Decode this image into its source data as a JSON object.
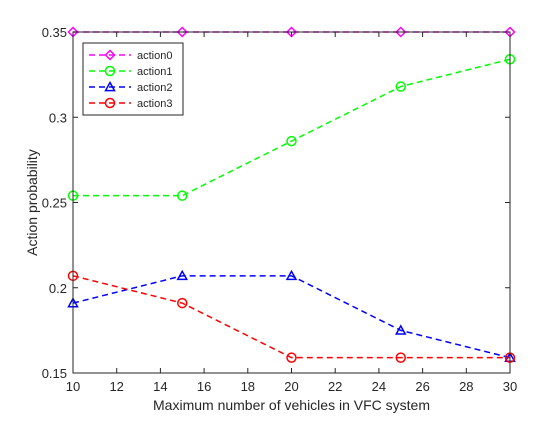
{
  "chart_data": {
    "type": "line",
    "title": "",
    "xlabel": "Maximum number of vehicles in VFC system",
    "ylabel": "Action probability",
    "xlim": [
      10,
      30
    ],
    "ylim": [
      0.15,
      0.35
    ],
    "xticks": [
      10,
      12,
      14,
      16,
      18,
      20,
      22,
      24,
      26,
      28,
      30
    ],
    "yticks": [
      0.15,
      0.2,
      0.25,
      0.3,
      0.35
    ],
    "ytick_labels": [
      "0.15",
      "0.2",
      "0.25",
      "0.3",
      "0.35"
    ],
    "grid": false,
    "legend_position": "top-left",
    "x": [
      10,
      15,
      20,
      25,
      30
    ],
    "series": [
      {
        "name": "action0",
        "color": "#ff00ff",
        "marker": "diamond",
        "values": [
          0.35,
          0.35,
          0.35,
          0.35,
          0.35
        ]
      },
      {
        "name": "action1",
        "color": "#00ff00",
        "marker": "circle",
        "values": [
          0.254,
          0.254,
          0.286,
          0.318,
          0.334
        ]
      },
      {
        "name": "action2",
        "color": "#0000ff",
        "marker": "triangle",
        "values": [
          0.191,
          0.207,
          0.207,
          0.175,
          0.159
        ]
      },
      {
        "name": "action3",
        "color": "#ff0000",
        "marker": "circle",
        "values": [
          0.207,
          0.191,
          0.159,
          0.159,
          0.159
        ]
      }
    ]
  }
}
